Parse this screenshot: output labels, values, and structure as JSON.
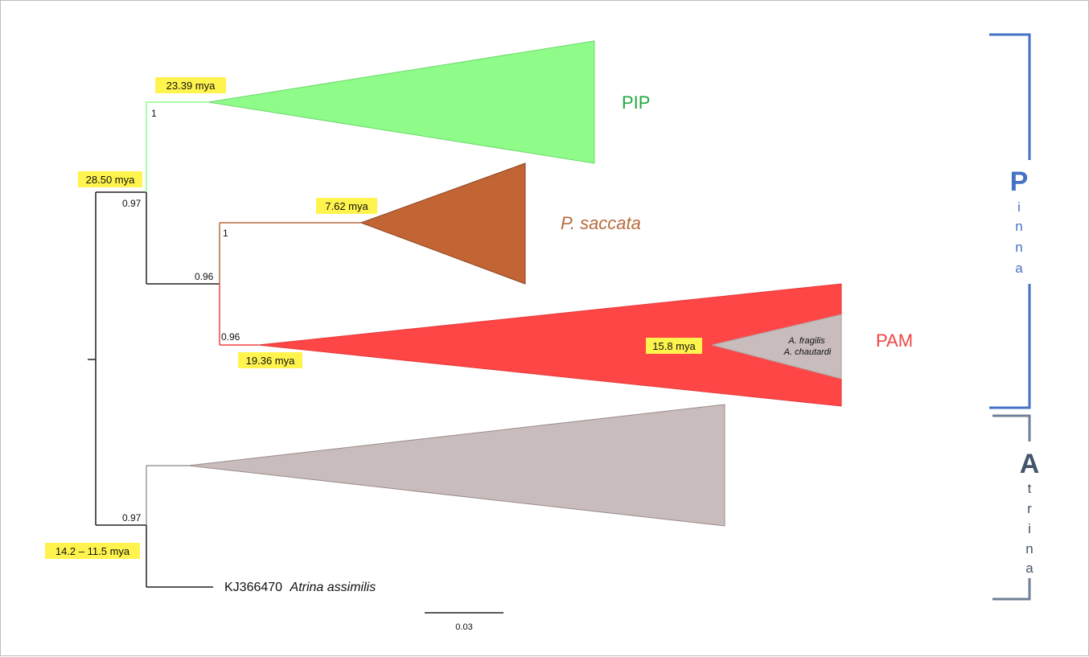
{
  "clades": {
    "pip": {
      "label": "PIP",
      "color": "#22a83f",
      "fill": "#8ffc8a",
      "age": "23.39 mya",
      "support": "1"
    },
    "saccata": {
      "label": "P. saccata",
      "color": "#b86a3c",
      "fill": "#c26433",
      "age": "7.62 mya",
      "support": "1"
    },
    "pam": {
      "label": "PAM",
      "color": "#ef4444",
      "fill": "#ff4646",
      "age": "19.36 mya",
      "support": "0.96"
    },
    "fragilis": {
      "label_1": "A. fragilis",
      "label_2": "A. chautardi",
      "age": "15.8 mya",
      "fill": "#c8bcbc"
    },
    "atrina_clade": {
      "fill": "#c8bcbc",
      "support": "0.97"
    }
  },
  "nodes": {
    "root_age": "14.2 – 11.5 mya",
    "pinna_age": "28.50 mya",
    "pinna_support": "0.97",
    "inner_support": "0.96"
  },
  "taxon": {
    "accession": "KJ366470",
    "species": "Atrina assimilis"
  },
  "scale_bar": {
    "label": "0.03"
  },
  "genera": {
    "pinna": {
      "initial": "P",
      "rest": [
        "i",
        "n",
        "n",
        "a"
      ],
      "color": "#4472c4"
    },
    "atrina": {
      "initial": "A",
      "rest": [
        "t",
        "r",
        "i",
        "n",
        "a"
      ],
      "color": "#44546a",
      "bracket_color": "#6f7f94"
    }
  }
}
